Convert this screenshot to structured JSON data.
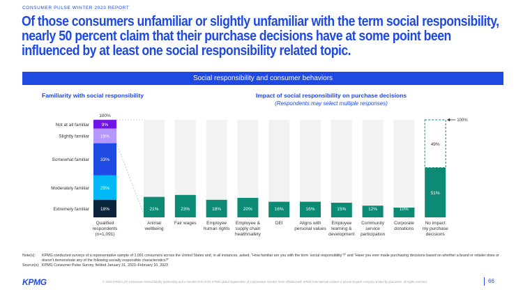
{
  "report_label": "CONSUMER PULSE WINTER 2023 REPORT",
  "headline": "Of those consumers unfamiliar or slightly unfamiliar with the term social responsibility, nearly 50 percent claim that their purchase decisions have at some point been influenced by at least one social responsibility related topic.",
  "banner": "Social responsibility and consumer behaviors",
  "colors": {
    "brand": "#1e49e2",
    "teal": "#0d8a74",
    "bar_bg": "#f2f2f2"
  },
  "chart_data": [
    {
      "type": "bar",
      "title": "Familiarity with social responsibility",
      "total_label": "100%",
      "category_label": [
        "Qualified",
        "respondents",
        "(n=1,091)"
      ],
      "segments": [
        {
          "name": "Not at all familiar",
          "value": 9,
          "label": "9%",
          "color": "#7213ea"
        },
        {
          "name": "Slightly familiar",
          "value": 15,
          "label": "15%",
          "color": "#b497ff"
        },
        {
          "name": "Somewhat familiar",
          "value": 33,
          "label": "33%",
          "color": "#1e49e2"
        },
        {
          "name": "Moderately familiar",
          "value": 25,
          "label": "25%",
          "color": "#00b8f5"
        },
        {
          "name": "Extremely familiar",
          "value": 18,
          "label": "18%",
          "color": "#0c233c"
        }
      ]
    },
    {
      "type": "bar",
      "title": "Impact of social responsibility on purchase decisions",
      "subtitle": "(Respondents may select multiple responses)",
      "ylim": [
        0,
        100
      ],
      "callout_label": "100%",
      "categories": [
        [
          "Animal",
          "wellbeing"
        ],
        [
          "Fair wages"
        ],
        [
          "Employee",
          "human rights"
        ],
        [
          "Employee &",
          "supply chain",
          "health/safety"
        ],
        [
          "DEI"
        ],
        [
          "Aligns with",
          "personal values"
        ],
        [
          "Employee",
          "learning &",
          "development"
        ],
        [
          "Community",
          "service",
          "participation"
        ],
        [
          "Corporate",
          "donations"
        ],
        [
          "No impact",
          "my purchase",
          "decisions"
        ]
      ],
      "values": [
        21,
        23,
        18,
        20,
        16,
        16,
        15,
        12,
        10,
        51
      ],
      "labels": [
        "21%",
        "23%",
        "18%",
        "20%",
        "16%",
        "16%",
        "15%",
        "12%",
        "10%",
        "51%"
      ],
      "remainder_label": "49%"
    }
  ],
  "notes": [
    {
      "label": "Note(s):",
      "text": "KPMG conducted surveys of a representative sample of 1,091 consumers across the United States and, in all instances, asked, “How familiar are you with the term ‘social responsibility’?” and “Have you ever made purchasing decisions based on whether a brand or retailer does or doesn’t demonstrate any of the following socially responsible characteristics?”"
    },
    {
      "label": "Source(s):",
      "text": "KPMG Consumer Pulse Survey, fielded January 31, 2023–February 10, 2023"
    }
  ],
  "footer": {
    "logo": "KPMG",
    "copyright": "© 2023 KPMG LLP, a Delaware limited liability partnership and a member firm of the KPMG global organization of independent member firms affiliated with KPMG International Limited, a private English company limited by guarantee. All rights reserved.",
    "page_number": "66"
  }
}
